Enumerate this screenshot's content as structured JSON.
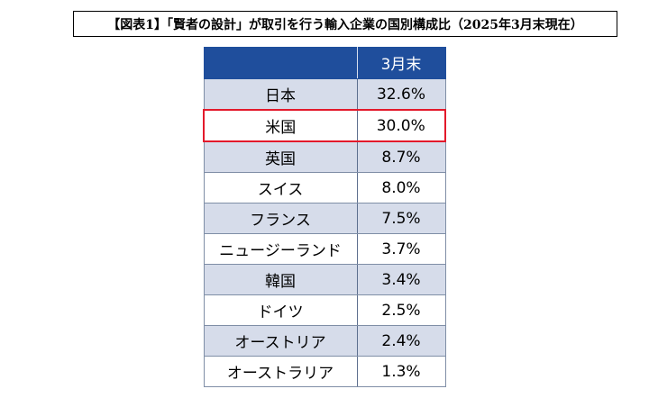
{
  "title": "【図表1】「賢者の設計」が取引を行う輸入企業の国別構成比（2025年3月末現在）",
  "colors": {
    "header_bg": "#1f4e9c",
    "shaded_row": "#d6dcea",
    "highlight_border": "#e3192b"
  },
  "chart_data": {
    "type": "table",
    "title": "【図表1】「賢者の設計」が取引を行う輸入企業の国別構成比（2025年3月末現在）",
    "columns": [
      "",
      "3月末"
    ],
    "rows": [
      {
        "country": "日本",
        "share": "32.6%",
        "value": 32.6,
        "highlighted": false
      },
      {
        "country": "米国",
        "share": "30.0%",
        "value": 30.0,
        "highlighted": true
      },
      {
        "country": "英国",
        "share": "8.7%",
        "value": 8.7,
        "highlighted": false
      },
      {
        "country": "スイス",
        "share": "8.0%",
        "value": 8.0,
        "highlighted": false
      },
      {
        "country": "フランス",
        "share": "7.5%",
        "value": 7.5,
        "highlighted": false
      },
      {
        "country": "ニュージーランド",
        "share": "3.7%",
        "value": 3.7,
        "highlighted": false
      },
      {
        "country": "韓国",
        "share": "3.4%",
        "value": 3.4,
        "highlighted": false
      },
      {
        "country": "ドイツ",
        "share": "2.5%",
        "value": 2.5,
        "highlighted": false
      },
      {
        "country": "オーストリア",
        "share": "2.4%",
        "value": 2.4,
        "highlighted": false
      },
      {
        "country": "オーストラリア",
        "share": "1.3%",
        "value": 1.3,
        "highlighted": false
      }
    ]
  }
}
